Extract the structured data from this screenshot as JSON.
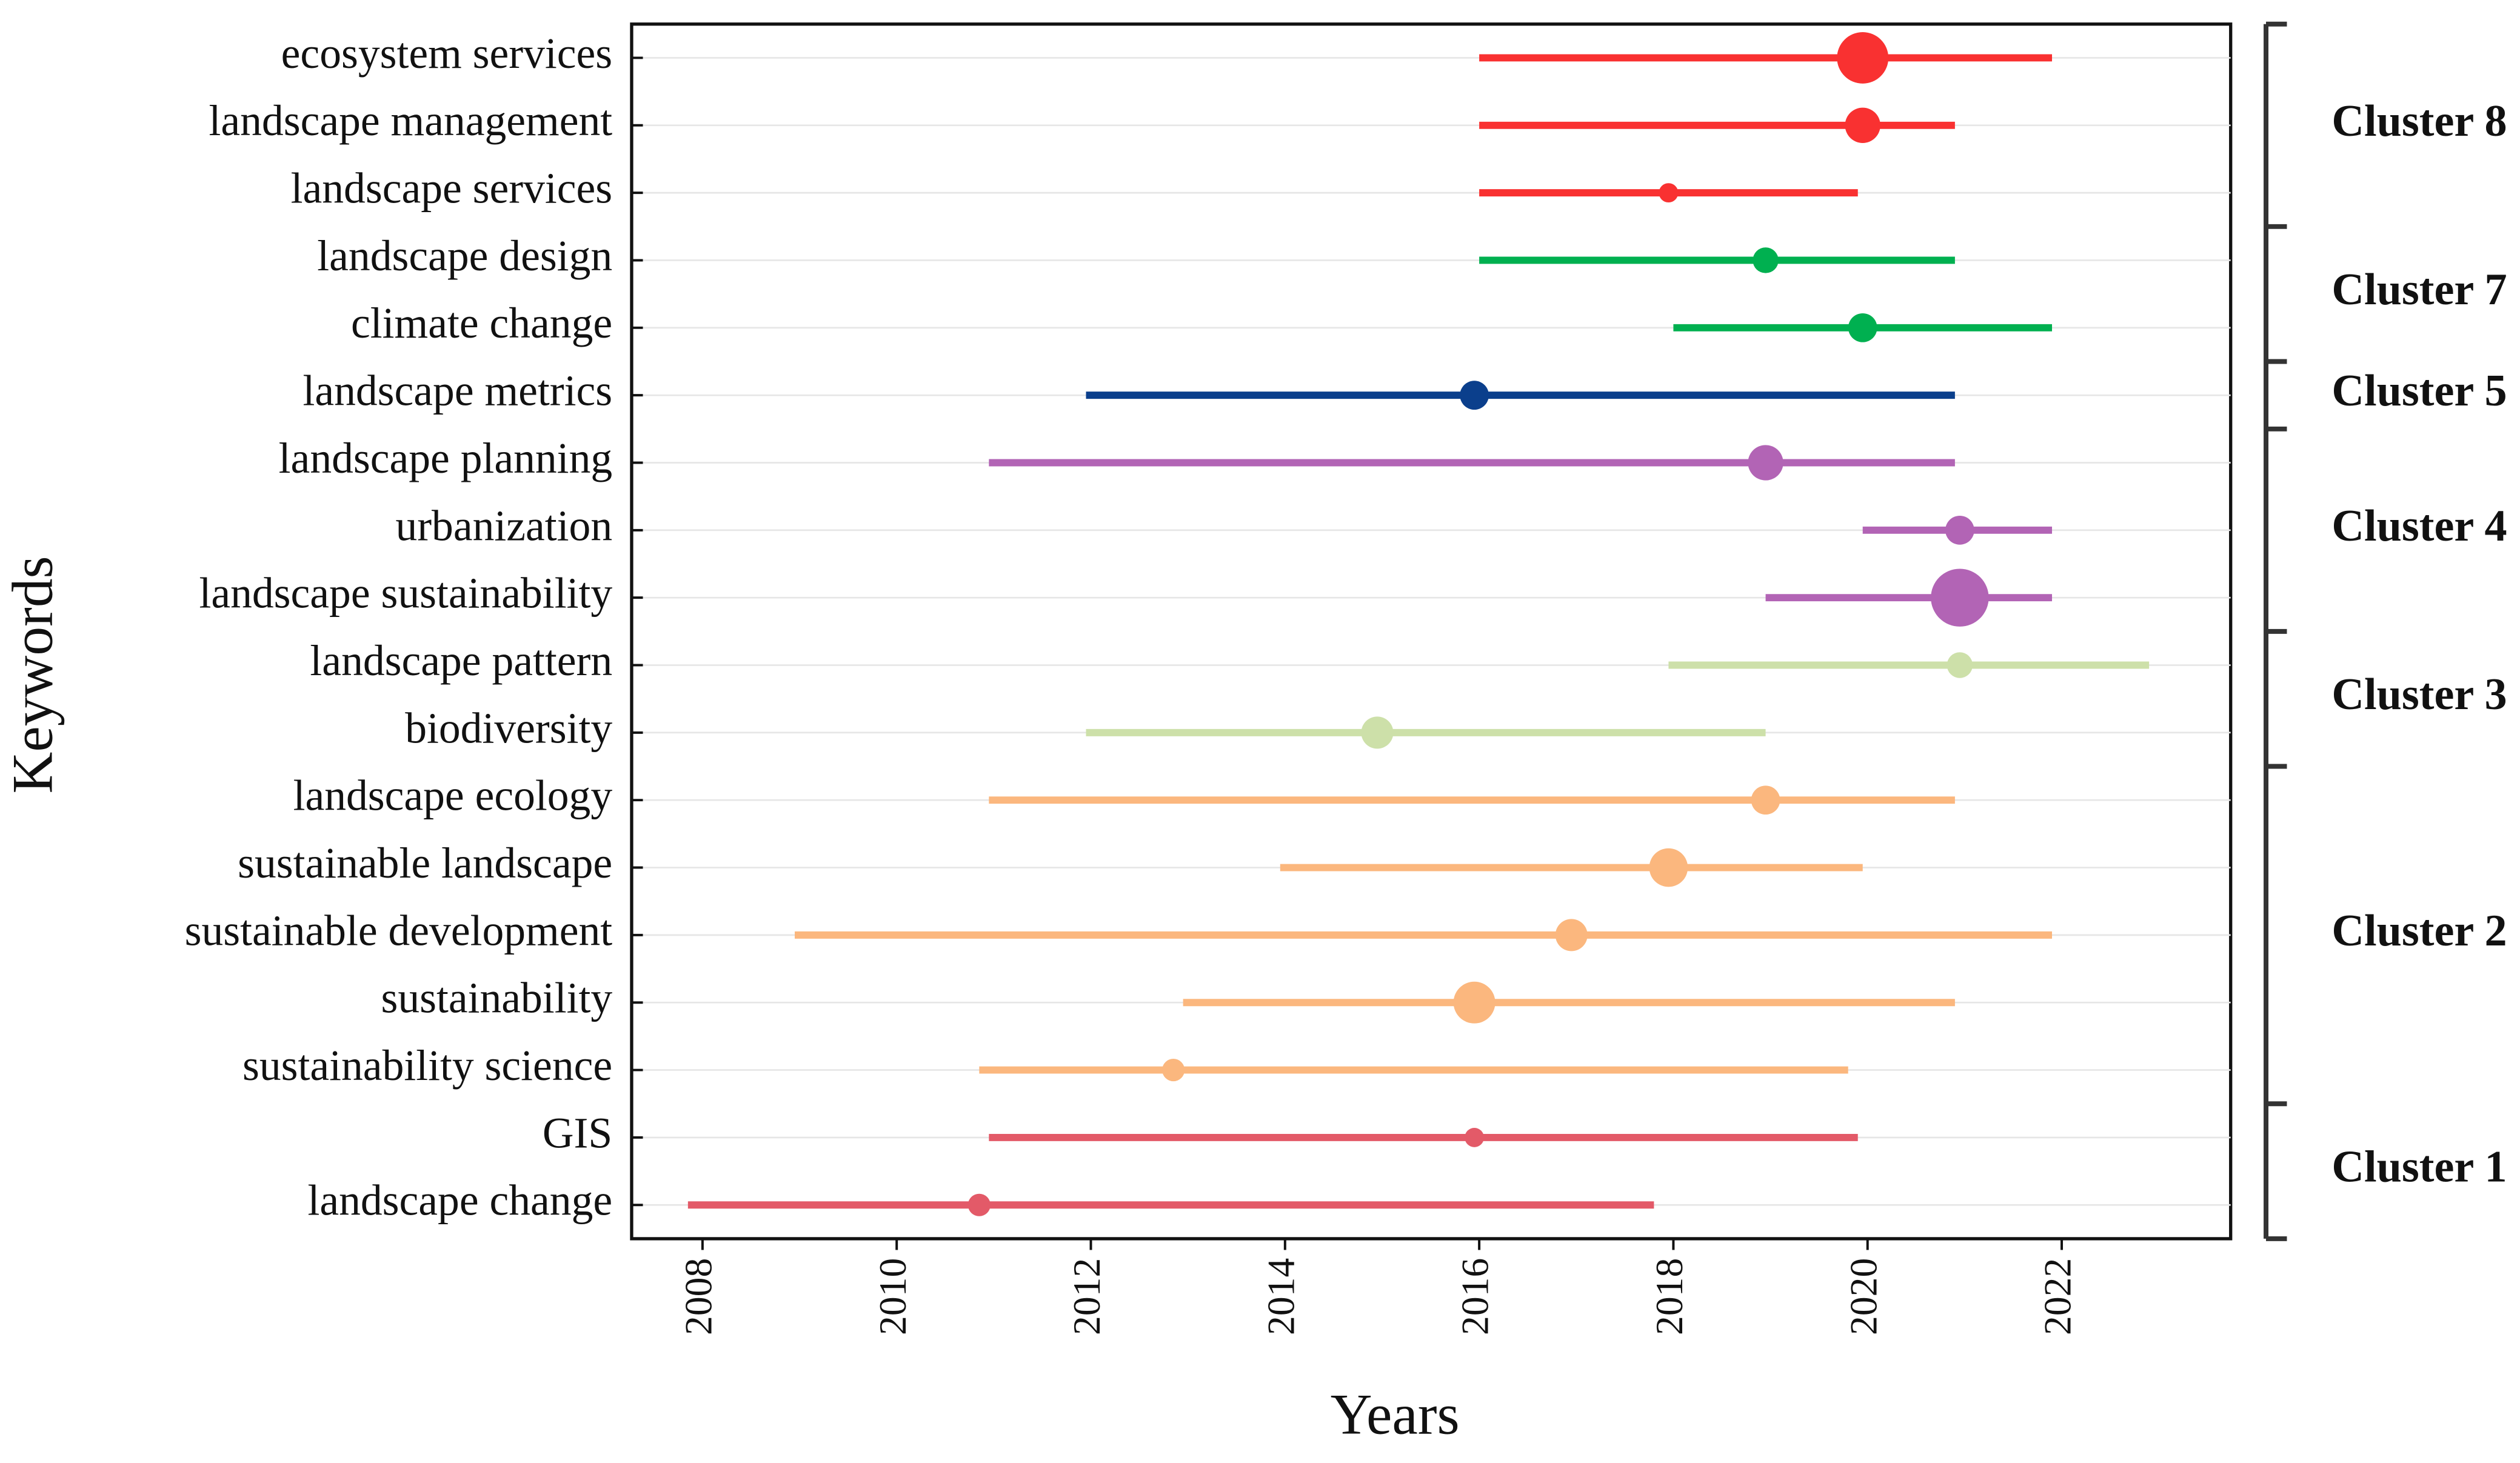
{
  "chart_data": {
    "type": "range_dot",
    "x_label": "Years",
    "y_label": "Keywords",
    "xlim": [
      2007.27,
      2023.74
    ],
    "xticks": [
      2008,
      2010,
      2012,
      2014,
      2016,
      2018,
      2020,
      2022
    ],
    "grid": true,
    "series": [
      {
        "name": "Cluster 8",
        "color": "#f93131",
        "keywords": [
          "ecosystem services",
          "landscape management",
          "landscape services"
        ],
        "start": [
          2016,
          2016,
          2016
        ],
        "end": [
          2021.9,
          2020.9,
          2019.9
        ],
        "peak": [
          2019.95,
          2019.95,
          2017.95
        ],
        "size": [
          16,
          11,
          6
        ]
      },
      {
        "name": "Cluster 7",
        "color": "#00b050",
        "keywords": [
          "landscape design",
          "climate change"
        ],
        "start": [
          2016,
          2018
        ],
        "end": [
          2020.9,
          2021.9
        ],
        "peak": [
          2018.95,
          2019.95
        ],
        "size": [
          8,
          9
        ]
      },
      {
        "name": "Cluster 5",
        "color": "#0b3f8c",
        "keywords": [
          "landscape metrics"
        ],
        "start": [
          2011.95
        ],
        "end": [
          2020.9
        ],
        "peak": [
          2015.95
        ],
        "size": [
          9
        ]
      },
      {
        "name": "Cluster 4",
        "color": "#b264b5",
        "keywords": [
          "landscape planning",
          "urbanization",
          "landscape sustainability"
        ],
        "start": [
          2010.95,
          2019.95,
          2018.95
        ],
        "end": [
          2020.9,
          2021.9,
          2021.9
        ],
        "peak": [
          2018.95,
          2020.95,
          2020.95
        ],
        "size": [
          11,
          9,
          18
        ]
      },
      {
        "name": "Cluster 3",
        "color": "#cde0a9",
        "keywords": [
          "landscape pattern",
          "biodiversity"
        ],
        "start": [
          2017.95,
          2011.95
        ],
        "end": [
          2022.9,
          2018.95
        ],
        "peak": [
          2020.95,
          2014.95
        ],
        "size": [
          8,
          10
        ]
      },
      {
        "name": "Cluster 2",
        "color": "#fbb77e",
        "keywords": [
          "landscape ecology",
          "sustainable landscape",
          "sustainable development",
          "sustainability",
          "sustainability science"
        ],
        "start": [
          2010.95,
          2013.95,
          2008.95,
          2012.95,
          2010.85
        ],
        "end": [
          2020.9,
          2019.95,
          2021.9,
          2020.9,
          2019.8
        ],
        "peak": [
          2018.95,
          2017.95,
          2016.95,
          2015.95,
          2012.85
        ],
        "size": [
          9,
          12,
          10,
          13,
          7
        ]
      },
      {
        "name": "Cluster 1",
        "color": "#e35a68",
        "keywords": [
          "GIS",
          "landscape change"
        ],
        "start": [
          2010.95,
          2007.85
        ],
        "end": [
          2019.9,
          2017.8
        ],
        "peak": [
          2015.95,
          2010.85
        ],
        "size": [
          6,
          7
        ]
      }
    ]
  }
}
